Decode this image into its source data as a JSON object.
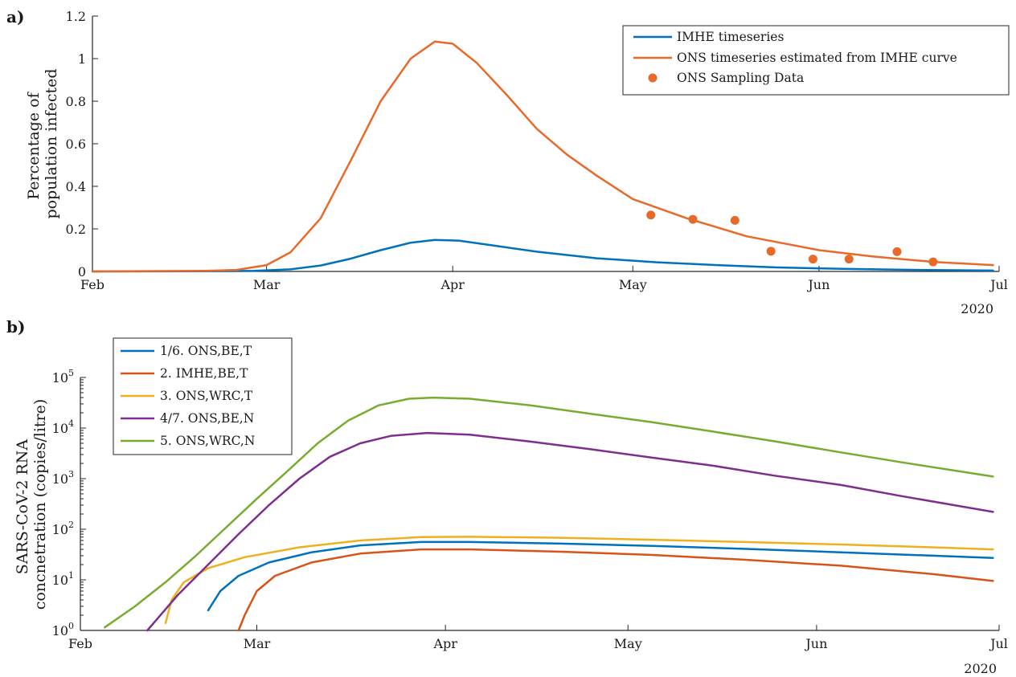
{
  "chart_data": [
    {
      "panel": "a)",
      "type": "line",
      "ylabel_lines": [
        "Percentage of",
        "population infected"
      ],
      "ylim": [
        0,
        1.2
      ],
      "yticks": [
        0,
        0.2,
        0.4,
        0.6,
        0.8,
        1,
        1.2
      ],
      "ytick_labels": [
        "0",
        "0.2",
        "0.4",
        "0.6",
        "0.8",
        "1",
        "1.2"
      ],
      "x_range": [
        "2020-02-01",
        "2020-07-01"
      ],
      "xticks": [
        {
          "date": "2020-02-01",
          "label": "Feb"
        },
        {
          "date": "2020-03-01",
          "label": "Mar"
        },
        {
          "date": "2020-04-01",
          "label": "Apr"
        },
        {
          "date": "2020-05-01",
          "label": "May"
        },
        {
          "date": "2020-06-01",
          "label": "Jun"
        },
        {
          "date": "2020-07-01",
          "label": "Jul"
        }
      ],
      "year_label": "2020",
      "legend_position": "top-right",
      "series": [
        {
          "name": "IMHE timeseries",
          "kind": "line",
          "color": "#0072bd",
          "points": [
            [
              "2020-02-01",
              0
            ],
            [
              "2020-02-20",
              0.001
            ],
            [
              "2020-02-28",
              0.003
            ],
            [
              "2020-03-05",
              0.01
            ],
            [
              "2020-03-10",
              0.028
            ],
            [
              "2020-03-15",
              0.06
            ],
            [
              "2020-03-20",
              0.1
            ],
            [
              "2020-03-25",
              0.135
            ],
            [
              "2020-03-29",
              0.148
            ],
            [
              "2020-04-02",
              0.145
            ],
            [
              "2020-04-07",
              0.125
            ],
            [
              "2020-04-15",
              0.093
            ],
            [
              "2020-04-25",
              0.062
            ],
            [
              "2020-05-05",
              0.043
            ],
            [
              "2020-05-15",
              0.03
            ],
            [
              "2020-05-25",
              0.019
            ],
            [
              "2020-06-05",
              0.012
            ],
            [
              "2020-06-15",
              0.008
            ],
            [
              "2020-06-30",
              0.004
            ]
          ]
        },
        {
          "name": "ONS timeseries estimated from IMHE curve",
          "kind": "line",
          "color": "#e86a2b",
          "points": [
            [
              "2020-02-01",
              0
            ],
            [
              "2020-02-20",
              0.003
            ],
            [
              "2020-02-25",
              0.007
            ],
            [
              "2020-03-01",
              0.03
            ],
            [
              "2020-03-05",
              0.09
            ],
            [
              "2020-03-10",
              0.25
            ],
            [
              "2020-03-15",
              0.52
            ],
            [
              "2020-03-20",
              0.8
            ],
            [
              "2020-03-25",
              1.0
            ],
            [
              "2020-03-29",
              1.08
            ],
            [
              "2020-04-01",
              1.07
            ],
            [
              "2020-04-05",
              0.98
            ],
            [
              "2020-04-10",
              0.83
            ],
            [
              "2020-04-15",
              0.67
            ],
            [
              "2020-04-20",
              0.55
            ],
            [
              "2020-04-25",
              0.45
            ],
            [
              "2020-05-01",
              0.34
            ],
            [
              "2020-05-10",
              0.25
            ],
            [
              "2020-05-20",
              0.165
            ],
            [
              "2020-06-01",
              0.1
            ],
            [
              "2020-06-10",
              0.07
            ],
            [
              "2020-06-20",
              0.045
            ],
            [
              "2020-06-30",
              0.03
            ]
          ]
        },
        {
          "name": "ONS Sampling Data",
          "kind": "scatter",
          "color": "#e86a2b",
          "points": [
            [
              "2020-05-04",
              0.265
            ],
            [
              "2020-05-11",
              0.245
            ],
            [
              "2020-05-18",
              0.24
            ],
            [
              "2020-05-24",
              0.095
            ],
            [
              "2020-05-31",
              0.058
            ],
            [
              "2020-06-06",
              0.058
            ],
            [
              "2020-06-14",
              0.093
            ],
            [
              "2020-06-20",
              0.045
            ]
          ]
        }
      ]
    },
    {
      "panel": "b)",
      "type": "line",
      "ylabel_lines": [
        "SARS-CoV-2 RNA",
        "concnetration (copies/litre)"
      ],
      "yscale": "log",
      "ylim": [
        1,
        100000
      ],
      "yticks_exp": [
        0,
        1,
        2,
        3,
        4,
        5
      ],
      "ytick_base": "10",
      "x_range": [
        "2020-02-01",
        "2020-07-01"
      ],
      "xticks": [
        {
          "date": "2020-02-01",
          "label": "Feb"
        },
        {
          "date": "2020-03-01",
          "label": "Mar"
        },
        {
          "date": "2020-04-01",
          "label": "Apr"
        },
        {
          "date": "2020-05-01",
          "label": "May"
        },
        {
          "date": "2020-06-01",
          "label": "Jun"
        },
        {
          "date": "2020-07-01",
          "label": "Jul"
        }
      ],
      "year_label": "2020",
      "legend_position": "top-left",
      "series": [
        {
          "name": "1/6. ONS,BE,T",
          "color": "#0072bd",
          "points": [
            [
              "2020-02-22",
              2.5
            ],
            [
              "2020-02-24",
              6
            ],
            [
              "2020-02-27",
              12
            ],
            [
              "2020-03-03",
              22
            ],
            [
              "2020-03-10",
              35
            ],
            [
              "2020-03-18",
              48
            ],
            [
              "2020-03-28",
              56
            ],
            [
              "2020-04-05",
              56
            ],
            [
              "2020-04-20",
              52
            ],
            [
              "2020-05-05",
              47
            ],
            [
              "2020-05-20",
              41
            ],
            [
              "2020-06-05",
              35
            ],
            [
              "2020-06-20",
              30
            ],
            [
              "2020-06-30",
              27
            ]
          ]
        },
        {
          "name": "2. IMHE,BE,T",
          "color": "#d95319",
          "points": [
            [
              "2020-02-27",
              1.0
            ],
            [
              "2020-02-28",
              2
            ],
            [
              "2020-03-01",
              6
            ],
            [
              "2020-03-04",
              12
            ],
            [
              "2020-03-10",
              22
            ],
            [
              "2020-03-18",
              33
            ],
            [
              "2020-03-28",
              40
            ],
            [
              "2020-04-05",
              40
            ],
            [
              "2020-04-20",
              36
            ],
            [
              "2020-05-05",
              31
            ],
            [
              "2020-05-20",
              25
            ],
            [
              "2020-06-05",
              19
            ],
            [
              "2020-06-20",
              13
            ],
            [
              "2020-06-30",
              9.5
            ]
          ]
        },
        {
          "name": "3. ONS,WRC,T",
          "color": "#edb120",
          "points": [
            [
              "2020-02-15",
              1.4
            ],
            [
              "2020-02-16",
              4
            ],
            [
              "2020-02-18",
              9
            ],
            [
              "2020-02-22",
              17
            ],
            [
              "2020-02-28",
              28
            ],
            [
              "2020-03-08",
              44
            ],
            [
              "2020-03-18",
              60
            ],
            [
              "2020-03-28",
              70
            ],
            [
              "2020-04-05",
              71
            ],
            [
              "2020-04-20",
              68
            ],
            [
              "2020-05-05",
              62
            ],
            [
              "2020-05-20",
              56
            ],
            [
              "2020-06-05",
              50
            ],
            [
              "2020-06-20",
              44
            ],
            [
              "2020-06-30",
              40
            ]
          ]
        },
        {
          "name": "4/7. ONS,BE,N",
          "color": "#7e2f8e",
          "points": [
            [
              "2020-02-12",
              1.0
            ],
            [
              "2020-02-17",
              5
            ],
            [
              "2020-02-22",
              20
            ],
            [
              "2020-02-27",
              80
            ],
            [
              "2020-03-03",
              300
            ],
            [
              "2020-03-08",
              1000
            ],
            [
              "2020-03-13",
              2700
            ],
            [
              "2020-03-18",
              5000
            ],
            [
              "2020-03-23",
              7000
            ],
            [
              "2020-03-29",
              8000
            ],
            [
              "2020-04-05",
              7400
            ],
            [
              "2020-04-15",
              5400
            ],
            [
              "2020-04-25",
              3800
            ],
            [
              "2020-05-05",
              2600
            ],
            [
              "2020-05-15",
              1800
            ],
            [
              "2020-05-25",
              1150
            ],
            [
              "2020-06-05",
              750
            ],
            [
              "2020-06-15",
              450
            ],
            [
              "2020-06-30",
              220
            ]
          ]
        },
        {
          "name": "5. ONS,WRC,N",
          "color": "#77ac30",
          "points": [
            [
              "2020-02-05",
              1.15
            ],
            [
              "2020-02-10",
              3
            ],
            [
              "2020-02-15",
              9
            ],
            [
              "2020-02-20",
              30
            ],
            [
              "2020-02-25",
              110
            ],
            [
              "2020-03-01",
              400
            ],
            [
              "2020-03-06",
              1400
            ],
            [
              "2020-03-11",
              5000
            ],
            [
              "2020-03-16",
              14000
            ],
            [
              "2020-03-21",
              28000
            ],
            [
              "2020-03-26",
              38000
            ],
            [
              "2020-03-30",
              40000
            ],
            [
              "2020-04-05",
              38000
            ],
            [
              "2020-04-15",
              28000
            ],
            [
              "2020-04-25",
              19000
            ],
            [
              "2020-05-05",
              13000
            ],
            [
              "2020-05-15",
              8500
            ],
            [
              "2020-05-25",
              5500
            ],
            [
              "2020-06-05",
              3300
            ],
            [
              "2020-06-15",
              2100
            ],
            [
              "2020-06-30",
              1100
            ]
          ]
        }
      ]
    }
  ]
}
